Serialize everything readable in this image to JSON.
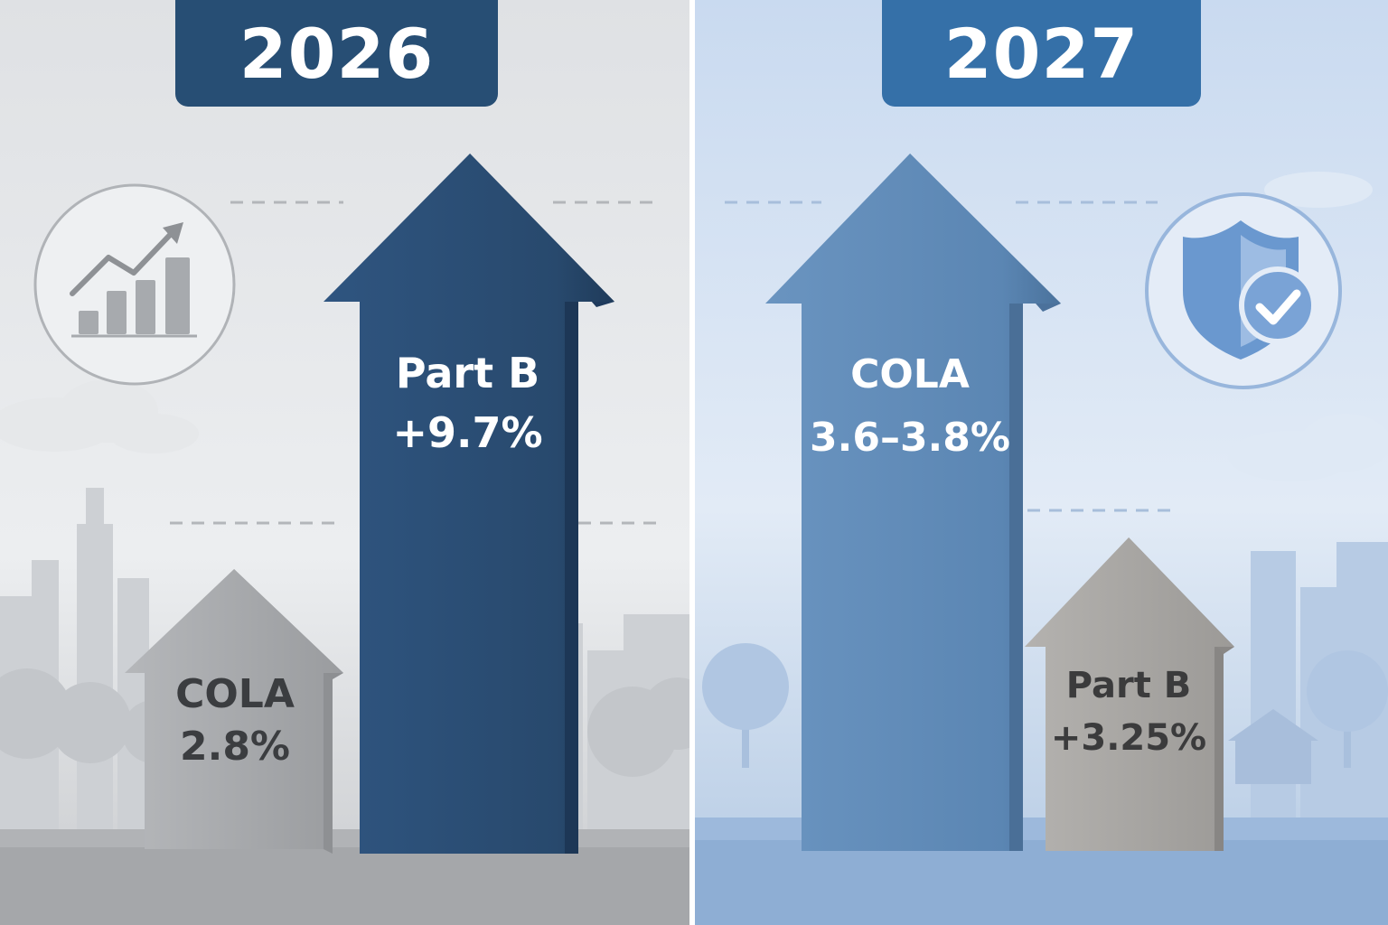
{
  "panels": [
    {
      "year": "2026",
      "icon": "trending-chart-icon",
      "arrows": [
        {
          "label": "COLA",
          "value": "2.8%",
          "color": "#a9abae"
        },
        {
          "label": "Part B",
          "value": "+9.7%",
          "color": "#2a4d73"
        }
      ]
    },
    {
      "year": "2027",
      "icon": "shield-check-icon",
      "arrows": [
        {
          "label": "COLA",
          "value": "3.6–3.8%",
          "color": "#5b88b5"
        },
        {
          "label": "Part B",
          "value": "+3.25%",
          "color": "#a6a4a2"
        }
      ]
    }
  ]
}
